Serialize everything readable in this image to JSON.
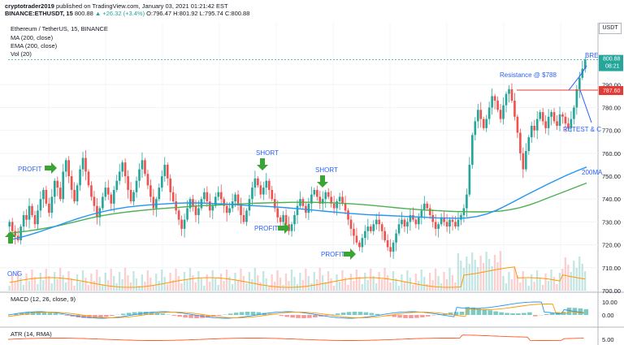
{
  "header": {
    "line1_user": "cryptotrader2019",
    "line1_rest": " published on TradingView.com, January 03, 2021 01:21:42 EST",
    "line2_pair": "BINANCE:ETHUSDT, 15",
    "line2_price": " 800.88 ",
    "line2_change": "▲ +26.32 (+3.4%)",
    "line2_ohlc": " O:796.47 H:801.92 L:795.74 C:800.88"
  },
  "legend": {
    "title": "Ethereum / TetherUS, 15, BINANCE",
    "ma": "MA (200, close)",
    "ema": "EMA (200, close)",
    "vol": "Vol (20)",
    "currency": "USDT"
  },
  "indicators": {
    "macd_label": "MACD (12, 26, close, 9)",
    "atr_label": "ATR (14, RMA)",
    "macd_axis": [
      "10.00",
      "0.00"
    ],
    "atr_axis": [
      "5.00"
    ]
  },
  "colors": {
    "up": "#26a69a",
    "down": "#ef5350",
    "ma": "#4caf50",
    "ema": "#2196f3",
    "annotation": "#2962ff",
    "arrow": "#3aa535",
    "resistance": "#e53935"
  },
  "annotations": {
    "profit_1": "PROFIT",
    "short_1": "SHORT",
    "short_2": "SHORT",
    "profit_2": "PROFIT",
    "profit_3": "PROFIT",
    "profit_left": "ONG",
    "resistance": "Resistance @ $788",
    "retest": "RETEST & C",
    "break": "BRE",
    "ma_label": "200MA"
  },
  "price_tags": {
    "last": "800.88",
    "countdown": "08:21",
    "resistance": "787.60"
  },
  "chart_data": {
    "type": "candlestick",
    "ylim": [
      700,
      805
    ],
    "y_ticks": [
      700,
      710,
      720,
      730,
      740,
      750,
      760,
      770,
      780,
      790
    ],
    "last_price": 800.88,
    "resistance_level": 787.6,
    "close_path": [
      730,
      726,
      724,
      722,
      728,
      733,
      731,
      737,
      733,
      729,
      735,
      740,
      744,
      738,
      734,
      741,
      748,
      745,
      740,
      752,
      757,
      750,
      744,
      739,
      746,
      753,
      758,
      752,
      746,
      741,
      737,
      732,
      736,
      741,
      745,
      742,
      738,
      744,
      748,
      752,
      756,
      750,
      744,
      739,
      743,
      748,
      753,
      757,
      751,
      746,
      741,
      736,
      740,
      745,
      750,
      755,
      749,
      743,
      739,
      735,
      731,
      727,
      731,
      736,
      740,
      737,
      733,
      736,
      740,
      743,
      739,
      735,
      737,
      741,
      743,
      740,
      737,
      734,
      736,
      739,
      742,
      738,
      733,
      730,
      735,
      740,
      745,
      749,
      746,
      742,
      745,
      748,
      744,
      740,
      736,
      732,
      730,
      733,
      729,
      726,
      729,
      733,
      737,
      740,
      737,
      734,
      738,
      742,
      744,
      741,
      738,
      740,
      743,
      741,
      738,
      736,
      739,
      741,
      738,
      735,
      731,
      727,
      724,
      721,
      719,
      723,
      726,
      728,
      726,
      729,
      731,
      729,
      726,
      722,
      719,
      717,
      721,
      725,
      729,
      731,
      728,
      730,
      733,
      731,
      729,
      732,
      735,
      738,
      736,
      733,
      730,
      727,
      729,
      732,
      730,
      728,
      731,
      730,
      728,
      731,
      733,
      736,
      742,
      755,
      768,
      774,
      779,
      775,
      771,
      775,
      780,
      785,
      783,
      779,
      775,
      781,
      786,
      788,
      783,
      776,
      769,
      760,
      753,
      761,
      767,
      772,
      770,
      775,
      778,
      774,
      771,
      776,
      778,
      774,
      772,
      777,
      776,
      773,
      771,
      775,
      780,
      788,
      793,
      797,
      801
    ],
    "ma200_path": [
      725,
      725.5,
      726,
      726.6,
      727.3,
      728.1,
      729,
      730,
      731,
      732,
      732.8,
      733.5,
      734.1,
      734.6,
      735,
      735.4,
      735.8,
      736.1,
      736.4,
      736.7,
      737,
      737.2,
      737.4,
      737.6,
      737.8,
      738,
      738.2,
      738.3,
      738.4,
      738.5,
      738.6,
      738.6,
      738.6,
      738.5,
      738.4,
      738.2,
      738,
      737.7,
      737.4,
      737,
      736.6,
      736.2,
      735.8,
      735.5,
      735.2,
      735,
      734.8,
      734.6,
      734.5,
      734.4,
      734.4,
      734.5,
      734.8,
      735.4,
      736.3,
      737.5,
      739,
      740.6,
      742.2,
      743.8,
      745.4,
      747
    ],
    "ema200_path": [
      722,
      723,
      724.2,
      725.5,
      727,
      728.5,
      730,
      731.5,
      732.8,
      734,
      735,
      735.8,
      736.5,
      737,
      737.4,
      737.7,
      738,
      738.2,
      738.3,
      738.3,
      738.2,
      738,
      737.8,
      737.5,
      737.2,
      737,
      736.8,
      736.5,
      736.2,
      735.8,
      735.4,
      735,
      734.6,
      734.2,
      733.8,
      733.5,
      733.2,
      733,
      732.8,
      732.6,
      732.4,
      732.2,
      732,
      731.8,
      731.7,
      731.6,
      731.8,
      732.4,
      733.5,
      735.2,
      737.3,
      739.6,
      741.9,
      744.1,
      746.3,
      748.4,
      750.4,
      752.3,
      754
    ]
  }
}
